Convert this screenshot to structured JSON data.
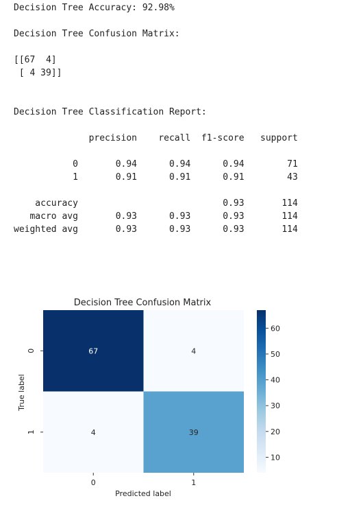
{
  "output": {
    "accuracy_line": "Decision Tree Accuracy: 92.98%",
    "cm_heading": "Decision Tree Confusion Matrix:",
    "cm_text_lines": [
      "[[67  4]",
      " [ 4 39]]"
    ],
    "report_heading": "Decision Tree Classification Report:",
    "report_header": "              precision    recall  f1-score   support",
    "report_rows": [
      "           0       0.94      0.94      0.94        71",
      "           1       0.91      0.91      0.91        43"
    ],
    "report_summary": [
      "    accuracy                           0.93       114",
      "   macro avg       0.93      0.93      0.93       114",
      "weighted avg       0.93      0.93      0.93       114"
    ]
  },
  "chart_data": {
    "type": "heatmap",
    "title": "Decision Tree Confusion Matrix",
    "xlabel": "Predicted label",
    "ylabel": "True label",
    "x_categories": [
      "0",
      "1"
    ],
    "y_categories": [
      "0",
      "1"
    ],
    "values": [
      [
        67,
        4
      ],
      [
        4,
        39
      ]
    ],
    "colormap": "Blues",
    "colorbar": {
      "min": 4,
      "max": 67,
      "ticks": [
        10,
        20,
        30,
        40,
        50,
        60
      ]
    },
    "colors": {
      "low": "#f7fbff",
      "high": "#08306b",
      "mid": "#4a98c9"
    }
  }
}
